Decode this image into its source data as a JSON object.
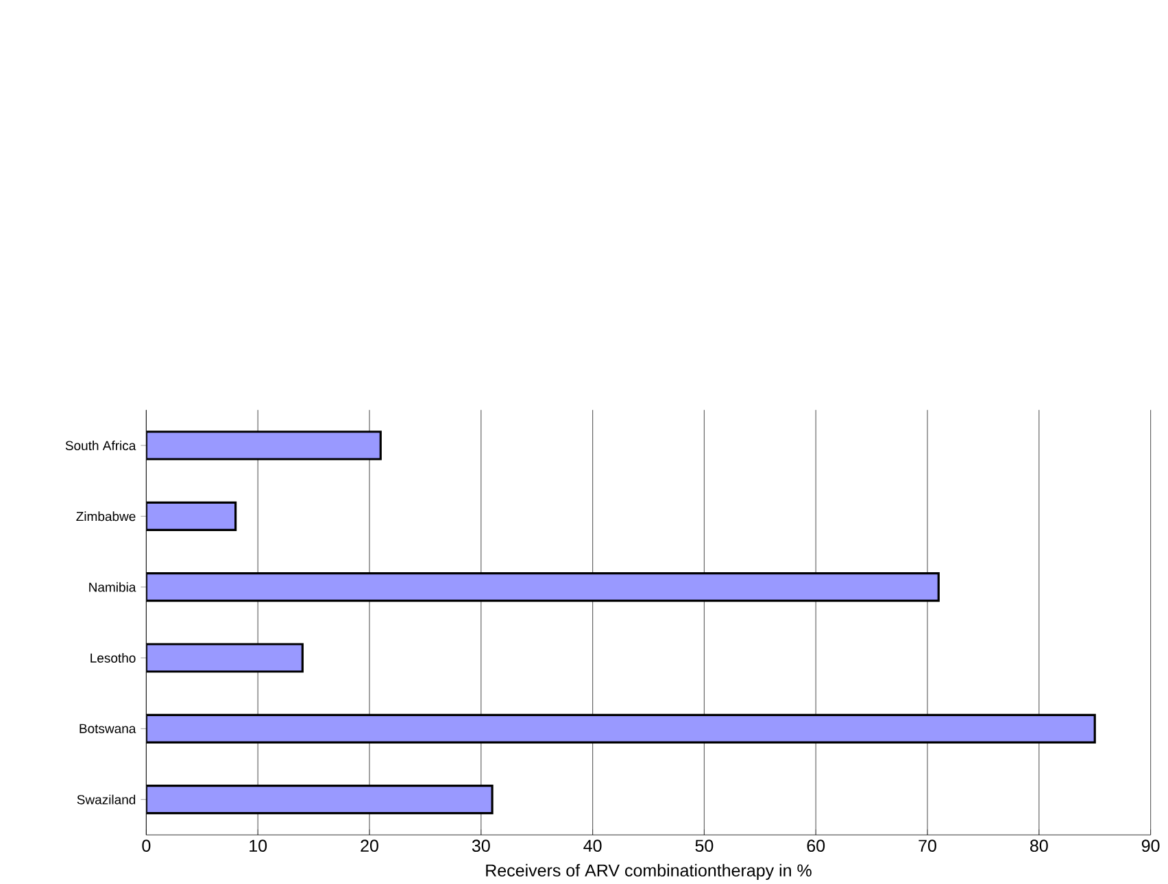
{
  "chart_data": {
    "type": "bar",
    "orientation": "horizontal",
    "xlabel": "Receivers of ARV combinationtherapy in %",
    "categories": [
      "South Africa",
      "Zimbabwe",
      "Namibia",
      "Lesotho",
      "Botswana",
      "Swaziland"
    ],
    "values": [
      21,
      8,
      71,
      14,
      85,
      31
    ],
    "color": "#9999ff",
    "xlim": [
      0,
      90
    ],
    "xticks": [
      0,
      10,
      20,
      30,
      40,
      50,
      60,
      70,
      80,
      90
    ],
    "grid": "x"
  }
}
